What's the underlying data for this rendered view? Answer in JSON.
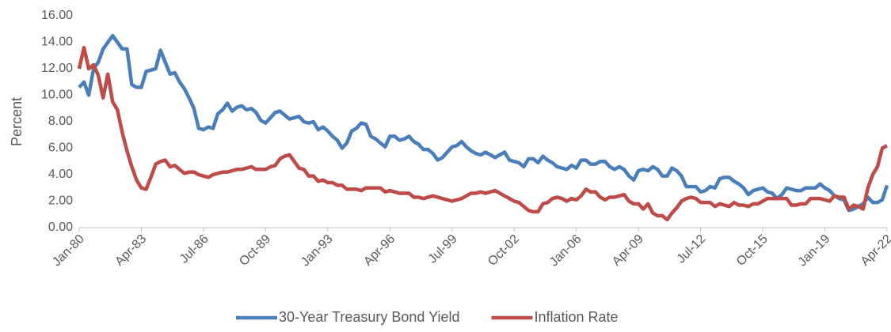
{
  "chart_data": {
    "type": "line",
    "y_label": "Percent",
    "categories": [
      "Jan-80",
      null,
      null,
      null,
      null,
      null,
      null,
      null,
      null,
      null,
      null,
      null,
      null,
      "Apr-83",
      null,
      null,
      null,
      null,
      null,
      null,
      null,
      null,
      null,
      null,
      null,
      null,
      "Jul-86",
      null,
      null,
      null,
      null,
      null,
      null,
      null,
      null,
      null,
      null,
      null,
      null,
      "Oct-89",
      null,
      null,
      null,
      null,
      null,
      null,
      null,
      null,
      null,
      null,
      null,
      null,
      "Jan-93",
      null,
      null,
      null,
      null,
      null,
      null,
      null,
      null,
      null,
      null,
      null,
      null,
      "Apr-96",
      null,
      null,
      null,
      null,
      null,
      null,
      null,
      null,
      null,
      null,
      null,
      null,
      "Jul-99",
      null,
      null,
      null,
      null,
      null,
      null,
      null,
      null,
      null,
      null,
      null,
      null,
      "Oct-02",
      null,
      null,
      null,
      null,
      null,
      null,
      null,
      null,
      null,
      null,
      null,
      null,
      "Jan-06",
      null,
      null,
      null,
      null,
      null,
      null,
      null,
      null,
      null,
      null,
      null,
      null,
      "Apr-09",
      null,
      null,
      null,
      null,
      null,
      null,
      null,
      null,
      null,
      null,
      null,
      null,
      "Jul-12",
      null,
      null,
      null,
      null,
      null,
      null,
      null,
      null,
      null,
      null,
      null,
      null,
      "Oct-15",
      null,
      null,
      null,
      null,
      null,
      null,
      null,
      null,
      null,
      null,
      null,
      null,
      "Jan-19",
      null,
      null,
      null,
      null,
      null,
      null,
      null,
      null,
      null,
      null,
      null,
      null,
      "Apr-22"
    ],
    "series": [
      {
        "name": "30-Year Treasury Bond Yield",
        "color": "#4a7ebb",
        "values": [
          10.6,
          11,
          10,
          12,
          12.5,
          13.5,
          14,
          14.5,
          14,
          13.5,
          13.5,
          10.8,
          10.6,
          10.6,
          11.8,
          11.9,
          12,
          13.4,
          12.5,
          11.6,
          11.7,
          11,
          10.5,
          9.8,
          9,
          7.5,
          7.4,
          7.6,
          7.5,
          8.6,
          8.9,
          9.4,
          8.8,
          9.1,
          9.2,
          8.9,
          9.0,
          8.7,
          8.1,
          7.9,
          8.3,
          8.7,
          8.8,
          8.5,
          8.2,
          8.3,
          8.4,
          8.0,
          7.9,
          8.0,
          7.4,
          7.6,
          7.3,
          6.9,
          6.6,
          6.0,
          6.4,
          7.3,
          7.5,
          7.9,
          7.8,
          6.9,
          6.7,
          6.4,
          6.1,
          6.9,
          6.9,
          6.6,
          6.7,
          6.9,
          6.5,
          6.3,
          5.9,
          5.9,
          5.6,
          5.1,
          5.3,
          5.7,
          6.1,
          6.2,
          6.5,
          6.1,
          5.8,
          5.6,
          5.5,
          5.7,
          5.5,
          5.3,
          5.5,
          5.7,
          5.1,
          5.0,
          4.9,
          4.6,
          5.2,
          5.2,
          4.9,
          5.4,
          5.1,
          4.9,
          4.6,
          4.5,
          4.4,
          4.7,
          4.5,
          5.1,
          5.1,
          4.8,
          4.8,
          5.0,
          5.0,
          4.6,
          4.4,
          4.6,
          4.4,
          3.9,
          3.6,
          4.3,
          4.4,
          4.3,
          4.6,
          4.4,
          3.9,
          3.9,
          4.5,
          4.3,
          3.9,
          3.1,
          3.1,
          3.1,
          2.7,
          2.8,
          3.1,
          3.0,
          3.7,
          3.8,
          3.8,
          3.5,
          3.3,
          3.0,
          2.5,
          2.8,
          2.9,
          3.0,
          2.7,
          2.6,
          2.2,
          2.5,
          3.0,
          2.9,
          2.8,
          2.8,
          3.0,
          3.0,
          3.0,
          3.3,
          3.0,
          2.8,
          2.4,
          2.2,
          2.1,
          1.3,
          1.4,
          1.6,
          1.8,
          2.3,
          1.9,
          1.9,
          2.1,
          3.2
        ]
      },
      {
        "name": "Inflation Rate",
        "color": "#be4b48",
        "values": [
          12.0,
          13.6,
          12.0,
          12.3,
          11.5,
          9.8,
          11.6,
          9.5,
          8.9,
          7.2,
          5.8,
          4.6,
          3.6,
          3.0,
          2.9,
          3.8,
          4.8,
          5.0,
          5.1,
          4.6,
          4.7,
          4.4,
          4.1,
          4.2,
          4.2,
          4.0,
          3.9,
          3.8,
          4.0,
          4.1,
          4.2,
          4.2,
          4.3,
          4.4,
          4.4,
          4.5,
          4.6,
          4.4,
          4.4,
          4.4,
          4.6,
          4.7,
          5.2,
          5.4,
          5.5,
          5.0,
          4.5,
          4.4,
          3.9,
          3.9,
          3.5,
          3.6,
          3.4,
          3.4,
          3.2,
          3.2,
          2.9,
          2.9,
          2.9,
          2.8,
          3.0,
          3.0,
          3.0,
          3.0,
          2.7,
          2.8,
          2.7,
          2.6,
          2.6,
          2.6,
          2.3,
          2.3,
          2.2,
          2.3,
          2.4,
          2.3,
          2.2,
          2.1,
          2.0,
          2.1,
          2.2,
          2.4,
          2.6,
          2.6,
          2.7,
          2.6,
          2.7,
          2.8,
          2.6,
          2.4,
          2.2,
          2.0,
          1.9,
          1.6,
          1.3,
          1.2,
          1.2,
          1.8,
          1.9,
          2.2,
          2.3,
          2.2,
          2.0,
          2.2,
          2.1,
          2.4,
          2.9,
          2.7,
          2.7,
          2.3,
          2.1,
          2.3,
          2.3,
          2.4,
          2.5,
          2.0,
          1.8,
          1.8,
          1.4,
          1.8,
          1.1,
          0.9,
          0.9,
          0.6,
          1.1,
          1.5,
          2.0,
          2.2,
          2.3,
          2.2,
          1.9,
          1.9,
          1.9,
          1.6,
          1.8,
          1.7,
          1.6,
          1.9,
          1.7,
          1.7,
          1.6,
          1.8,
          1.8,
          2.0,
          2.2,
          2.2,
          2.2,
          2.2,
          2.2,
          1.7,
          1.7,
          1.8,
          1.8,
          2.2,
          2.2,
          2.2,
          2.1,
          2.0,
          2.4,
          2.3,
          2.3,
          1.4,
          1.7,
          1.6,
          1.4,
          3.0,
          4.0,
          4.6,
          6.0,
          6.2
        ]
      }
    ],
    "ylim": [
      0,
      16
    ],
    "yticks": [
      {
        "value": 0,
        "label": "0.00"
      },
      {
        "value": 2,
        "label": "2.00"
      },
      {
        "value": 4,
        "label": "4.00"
      },
      {
        "value": 6,
        "label": "6.00"
      },
      {
        "value": 8,
        "label": "8.00"
      },
      {
        "value": 10,
        "label": "10.00"
      },
      {
        "value": 12,
        "label": "12.00"
      },
      {
        "value": 14,
        "label": "14.00"
      },
      {
        "value": 16,
        "label": "16.00"
      }
    ],
    "grid": false,
    "legend": "bottom"
  }
}
